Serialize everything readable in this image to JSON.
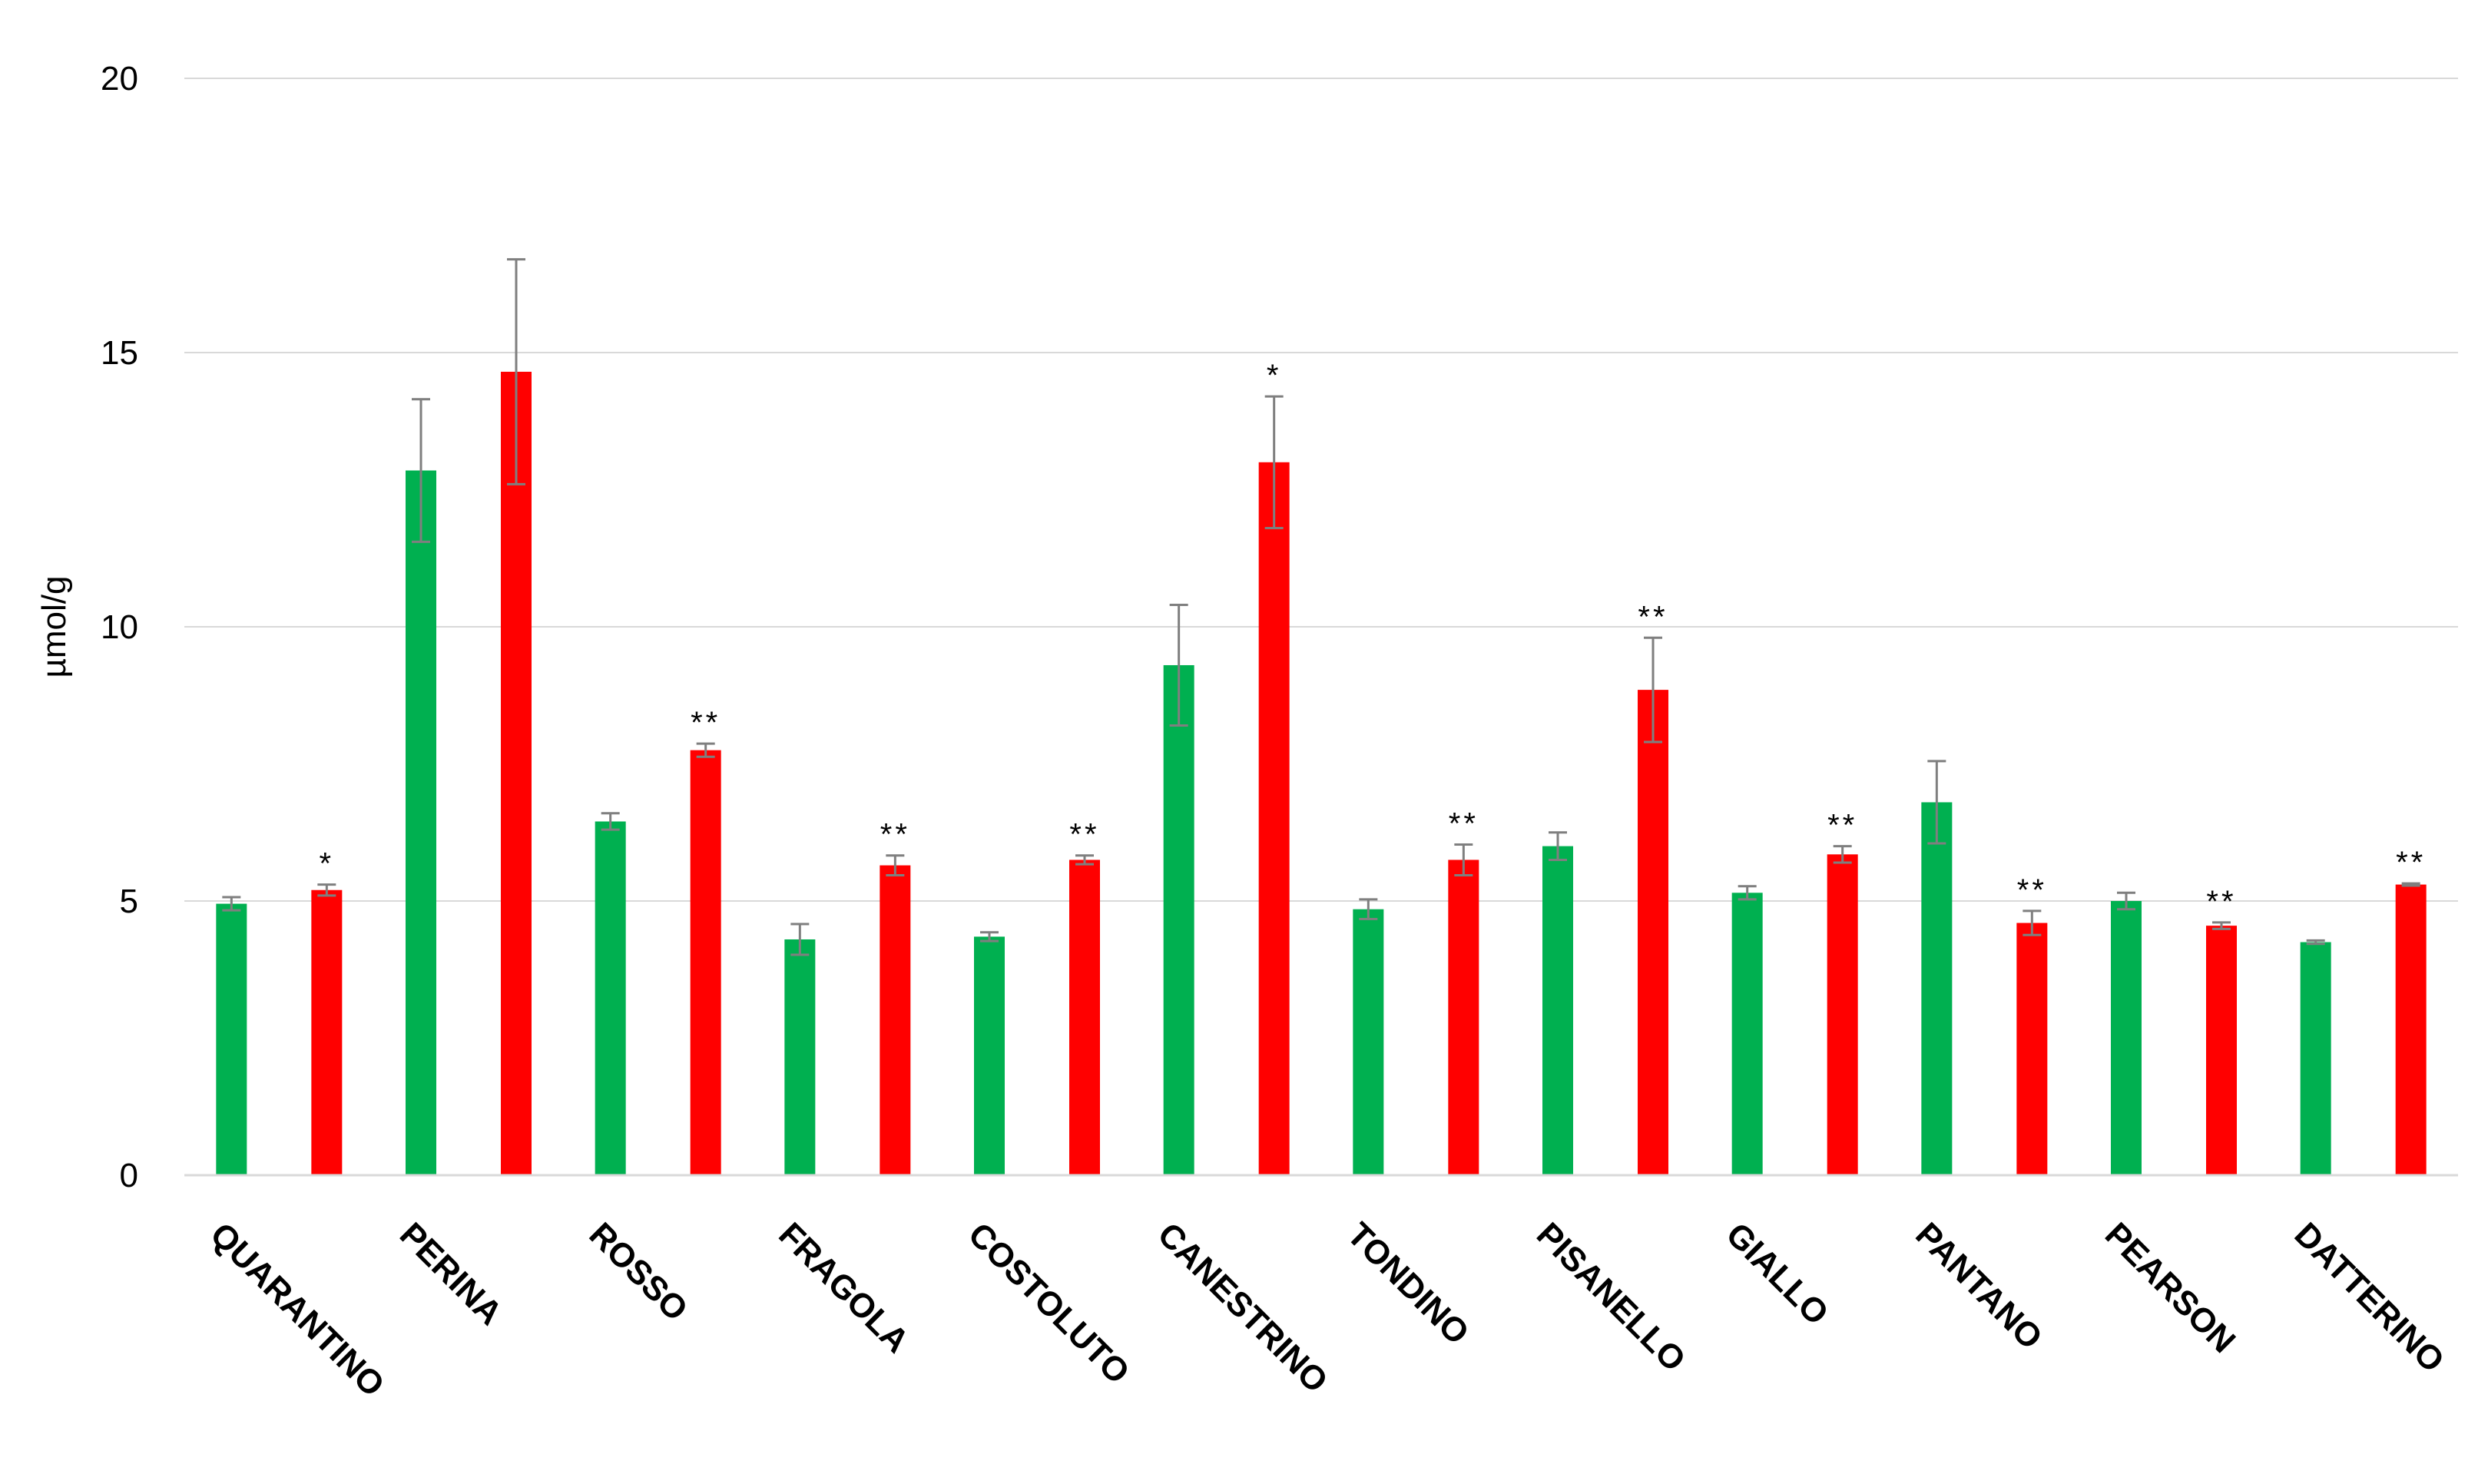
{
  "chart_data": {
    "type": "bar",
    "title": "",
    "xlabel": "",
    "ylabel": "µmol/g",
    "ylim": [
      0,
      20
    ],
    "yticks": [
      0,
      5,
      10,
      15,
      20
    ],
    "grid": true,
    "legend": "none",
    "categories": [
      "QUARANTINO",
      "PERINA",
      "ROSSO",
      "FRAGOLA",
      "COSTOLUTO",
      "CANESTRINO",
      "TONDINO",
      "PISANELLO",
      "GIALLO",
      "PANTANO",
      "PEARSON",
      "DATTERINO"
    ],
    "series": [
      {
        "color": "#00b050",
        "values": [
          4.95,
          12.85,
          6.45,
          4.3,
          4.35,
          9.3,
          4.85,
          6.0,
          5.15,
          6.8,
          5.0,
          4.25
        ],
        "errors": [
          0.12,
          1.3,
          0.15,
          0.28,
          0.08,
          1.1,
          0.18,
          0.25,
          0.12,
          0.75,
          0.15,
          0.03
        ],
        "significance": [
          "",
          "",
          "",
          "",
          "",
          "",
          "",
          "",
          "",
          "",
          "",
          ""
        ]
      },
      {
        "color": "#ff0000",
        "values": [
          5.2,
          14.65,
          7.75,
          5.65,
          5.75,
          13.0,
          5.75,
          8.85,
          5.85,
          4.6,
          4.55,
          5.3
        ],
        "errors": [
          0.1,
          2.05,
          0.12,
          0.18,
          0.08,
          1.2,
          0.28,
          0.95,
          0.15,
          0.22,
          0.06,
          0.02
        ],
        "significance": [
          "*",
          "",
          "**",
          "**",
          "**",
          "*",
          "**",
          "**",
          "**",
          "**",
          "**",
          "**"
        ]
      }
    ]
  }
}
